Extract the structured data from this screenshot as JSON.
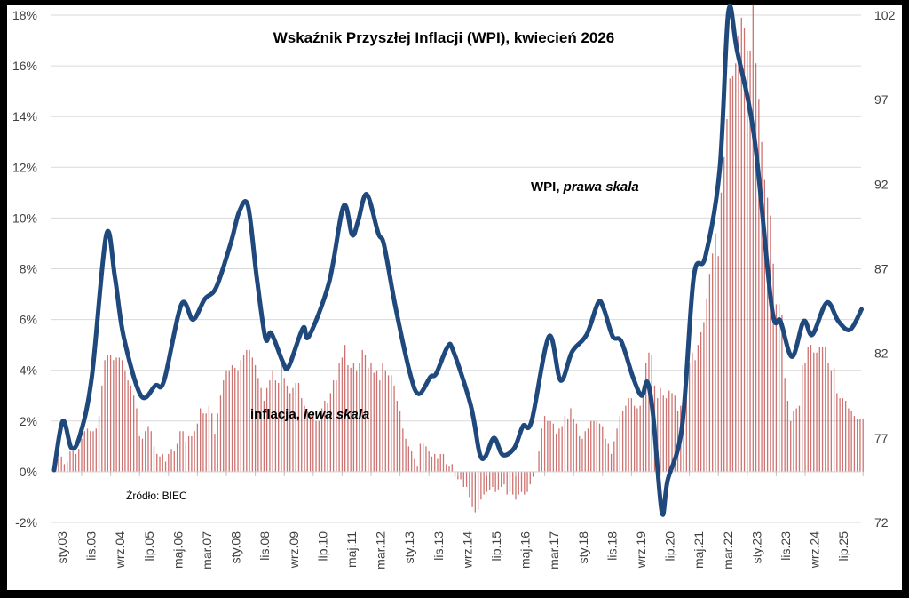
{
  "chart_data": {
    "type": "bar+line",
    "title": "Wskaźnik Przyszłej Inflacji (WPI), kwiecień 2026",
    "source": "Źródło: BIEC",
    "annotations": {
      "wpi": {
        "bold": "WPI, ",
        "italic": "prawa skala"
      },
      "inflation": {
        "bold": "inflacja, ",
        "italic": "lewa skala"
      }
    },
    "left_axis": {
      "ticks": [
        "-2%",
        "0%",
        "2%",
        "4%",
        "6%",
        "8%",
        "10%",
        "12%",
        "14%",
        "16%",
        "18%"
      ],
      "range": [
        -2,
        18
      ],
      "unit": "%"
    },
    "right_axis": {
      "ticks": [
        "72",
        "77",
        "82",
        "87",
        "92",
        "97",
        "102"
      ],
      "range": [
        72,
        102
      ]
    },
    "x_ticks": [
      "sty.03",
      "lis.03",
      "wrz.04",
      "lip.05",
      "maj.06",
      "mar.07",
      "sty.08",
      "lis.08",
      "wrz.09",
      "lip.10",
      "maj.11",
      "mar.12",
      "sty.13",
      "lis.13",
      "wrz.14",
      "lip.15",
      "maj.16",
      "mar.17",
      "sty.18",
      "lis.18",
      "wrz.19",
      "lip.20",
      "maj.21",
      "mar.22",
      "sty.23",
      "lis.23",
      "wrz.24",
      "lip.25"
    ],
    "grid": true,
    "colors": {
      "inflation": "#c0504d",
      "wpi": "#1f497d",
      "grid": "#d9d9d9",
      "frame": "#000000"
    },
    "series": [
      {
        "name": "inflacja",
        "type": "bar",
        "axis": "left",
        "start": "2003-01",
        "frequency": "monthly",
        "values": [
          0.4,
          0.5,
          0.6,
          0.3,
          0.4,
          0.8,
          0.8,
          0.7,
          0.9,
          1.3,
          1.6,
          1.7,
          1.6,
          1.6,
          1.7,
          2.2,
          3.4,
          4.4,
          4.6,
          4.6,
          4.4,
          4.5,
          4.5,
          4.4,
          4.0,
          3.6,
          3.4,
          3.0,
          2.5,
          1.4,
          1.3,
          1.6,
          1.8,
          1.6,
          1.0,
          0.7,
          0.6,
          0.7,
          0.4,
          0.7,
          0.9,
          0.8,
          1.1,
          1.6,
          1.6,
          1.2,
          1.4,
          1.4,
          1.6,
          1.9,
          2.5,
          2.3,
          2.3,
          2.6,
          2.3,
          1.5,
          2.3,
          3.0,
          3.6,
          4.0,
          4.0,
          4.2,
          4.1,
          4.0,
          4.4,
          4.6,
          4.8,
          4.8,
          4.5,
          4.2,
          3.7,
          3.3,
          2.8,
          3.3,
          3.6,
          4.0,
          3.6,
          3.5,
          4.2,
          3.7,
          3.4,
          3.1,
          3.3,
          3.5,
          3.5,
          2.9,
          2.6,
          2.4,
          2.2,
          2.3,
          2.0,
          2.0,
          2.5,
          2.8,
          2.7,
          3.1,
          3.6,
          3.6,
          4.3,
          4.5,
          5.0,
          4.2,
          4.1,
          4.3,
          4.0,
          4.3,
          4.8,
          4.6,
          4.1,
          4.3,
          3.9,
          4.0,
          3.6,
          4.3,
          4.0,
          3.8,
          3.8,
          3.4,
          2.8,
          2.4,
          1.7,
          1.3,
          1.0,
          0.8,
          0.5,
          0.2,
          1.1,
          1.1,
          1.0,
          0.8,
          0.6,
          0.7,
          0.5,
          0.7,
          0.7,
          0.3,
          0.2,
          0.3,
          -0.2,
          -0.3,
          -0.3,
          -0.6,
          -0.6,
          -1.0,
          -1.4,
          -1.6,
          -1.5,
          -1.1,
          -0.9,
          -0.8,
          -0.7,
          -0.6,
          -0.8,
          -0.7,
          -0.6,
          -0.5,
          -0.9,
          -0.8,
          -0.9,
          -1.1,
          -0.9,
          -0.8,
          -0.9,
          -0.8,
          -0.5,
          -0.2,
          0.0,
          0.8,
          1.7,
          2.2,
          2.0,
          2.0,
          1.9,
          1.5,
          1.7,
          1.8,
          2.2,
          2.1,
          2.5,
          2.1,
          1.9,
          1.4,
          1.3,
          1.6,
          1.7,
          2.0,
          2.0,
          2.0,
          1.9,
          1.8,
          1.3,
          1.1,
          0.7,
          1.2,
          1.7,
          2.2,
          2.4,
          2.6,
          2.9,
          2.9,
          2.6,
          2.5,
          2.6,
          3.4,
          4.3,
          4.7,
          4.6,
          3.4,
          2.9,
          3.3,
          3.0,
          2.9,
          3.2,
          3.1,
          3.0,
          2.4,
          2.6,
          2.4,
          3.2,
          4.3,
          4.7,
          4.4,
          5.0,
          5.5,
          5.9,
          6.8,
          7.8,
          8.6,
          9.4,
          8.5,
          11.0,
          12.4,
          13.9,
          15.5,
          15.6,
          16.1,
          17.2,
          17.9,
          17.5,
          16.6,
          16.6,
          18.4,
          16.1,
          14.7,
          13.0,
          11.5,
          10.8,
          10.1,
          8.2,
          6.6,
          6.6,
          6.2,
          3.7,
          2.8,
          2.0,
          2.4,
          2.5,
          2.6,
          4.2,
          4.3,
          4.9,
          5.0,
          4.7,
          4.7,
          4.9,
          4.9,
          4.9,
          4.3,
          4.0,
          4.1,
          3.1,
          2.9,
          2.9,
          2.8,
          2.5,
          2.4,
          2.2,
          2.1,
          2.1,
          2.1
        ]
      },
      {
        "name": "WPI",
        "type": "line",
        "axis": "right",
        "points": [
          [
            "2003-01",
            75.1
          ],
          [
            "2003-04",
            78.0
          ],
          [
            "2003-07",
            76.4
          ],
          [
            "2003-10",
            77.2
          ],
          [
            "2004-02",
            80.6
          ],
          [
            "2004-07",
            89.0
          ],
          [
            "2004-10",
            86.5
          ],
          [
            "2005-01",
            83.0
          ],
          [
            "2005-07",
            79.5
          ],
          [
            "2005-12",
            80.1
          ],
          [
            "2006-03",
            80.4
          ],
          [
            "2006-09",
            84.9
          ],
          [
            "2007-01",
            84.0
          ],
          [
            "2007-05",
            85.2
          ],
          [
            "2007-09",
            85.9
          ],
          [
            "2008-02",
            88.5
          ],
          [
            "2008-05",
            90.4
          ],
          [
            "2008-08",
            90.7
          ],
          [
            "2008-11",
            86.5
          ],
          [
            "2009-02",
            82.9
          ],
          [
            "2009-04",
            83.2
          ],
          [
            "2009-08",
            81.5
          ],
          [
            "2009-10",
            81.2
          ],
          [
            "2010-03",
            83.5
          ],
          [
            "2010-05",
            83.0
          ],
          [
            "2010-12",
            86.2
          ],
          [
            "2011-05",
            90.7
          ],
          [
            "2011-08",
            89.0
          ],
          [
            "2011-10",
            89.8
          ],
          [
            "2012-01",
            91.4
          ],
          [
            "2012-05",
            89.1
          ],
          [
            "2012-07",
            88.4
          ],
          [
            "2012-11",
            84.7
          ],
          [
            "2013-04",
            80.8
          ],
          [
            "2013-07",
            79.6
          ],
          [
            "2013-11",
            80.6
          ],
          [
            "2014-01",
            80.8
          ],
          [
            "2014-05",
            82.4
          ],
          [
            "2014-07",
            82.1
          ],
          [
            "2015-01",
            78.9
          ],
          [
            "2015-04",
            76.1
          ],
          [
            "2015-06",
            75.9
          ],
          [
            "2015-09",
            77.0
          ],
          [
            "2015-12",
            76.0
          ],
          [
            "2016-04",
            76.4
          ],
          [
            "2016-07",
            77.7
          ],
          [
            "2016-10",
            78.0
          ],
          [
            "2017-04",
            83.0
          ],
          [
            "2017-08",
            80.4
          ],
          [
            "2017-12",
            82.1
          ],
          [
            "2018-05",
            83.1
          ],
          [
            "2018-09",
            85.0
          ],
          [
            "2018-11",
            84.6
          ],
          [
            "2019-02",
            83.0
          ],
          [
            "2019-05",
            82.7
          ],
          [
            "2019-09",
            80.6
          ],
          [
            "2019-12",
            79.5
          ],
          [
            "2020-02",
            80.3
          ],
          [
            "2020-04",
            78.3
          ],
          [
            "2020-07",
            72.6
          ],
          [
            "2020-09",
            74.5
          ],
          [
            "2021-02",
            77.7
          ],
          [
            "2021-06",
            86.5
          ],
          [
            "2021-10",
            87.7
          ],
          [
            "2022-03",
            92.9
          ],
          [
            "2022-06",
            102.2
          ],
          [
            "2022-09",
            99.9
          ],
          [
            "2023-03",
            94.7
          ],
          [
            "2023-09",
            84.7
          ],
          [
            "2023-12",
            83.9
          ],
          [
            "2024-04",
            81.8
          ],
          [
            "2024-08",
            83.9
          ],
          [
            "2024-11",
            83.1
          ],
          [
            "2025-04",
            85.0
          ],
          [
            "2025-08",
            83.9
          ],
          [
            "2025-12",
            83.4
          ],
          [
            "2026-04",
            84.6
          ]
        ]
      }
    ]
  }
}
